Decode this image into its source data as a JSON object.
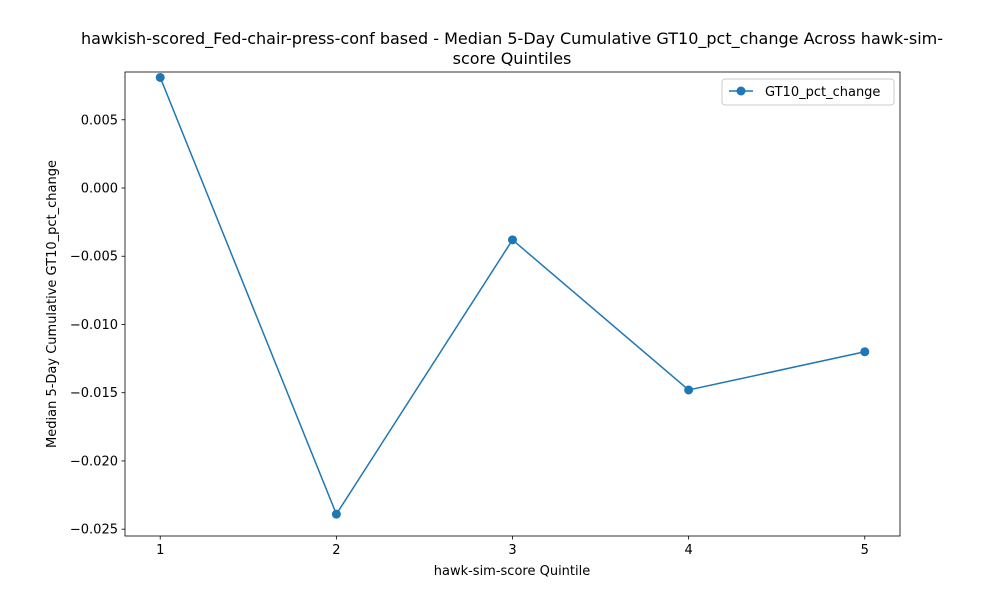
{
  "chart_data": {
    "type": "line",
    "title_lines": [
      "hawkish-scored_Fed-chair-press-conf based - Median 5-Day Cumulative GT10_pct_change Across hawk-sim-",
      "score Quintiles"
    ],
    "xlabel": "hawk-sim-score Quintile",
    "ylabel": "Median 5-Day Cumulative GT10_pct_change",
    "x": [
      1,
      2,
      3,
      4,
      5
    ],
    "series": [
      {
        "name": "GT10_pct_change",
        "color": "#1f77b4",
        "marker": "circle",
        "values": [
          0.0081,
          -0.0239,
          -0.0038,
          -0.0148,
          -0.012
        ]
      }
    ],
    "xlim": [
      0.8,
      5.2
    ],
    "ylim": [
      -0.0255,
      0.0085
    ],
    "x_ticks": [
      1,
      2,
      3,
      4,
      5
    ],
    "x_tick_labels": [
      "1",
      "2",
      "3",
      "4",
      "5"
    ],
    "y_ticks": [
      -0.025,
      -0.02,
      -0.015,
      -0.01,
      -0.005,
      0.0,
      0.005
    ],
    "y_tick_labels": [
      "−0.025",
      "−0.020",
      "−0.015",
      "−0.010",
      "−0.005",
      "0.000",
      "0.005"
    ],
    "grid": false,
    "legend_position": "top-right"
  }
}
